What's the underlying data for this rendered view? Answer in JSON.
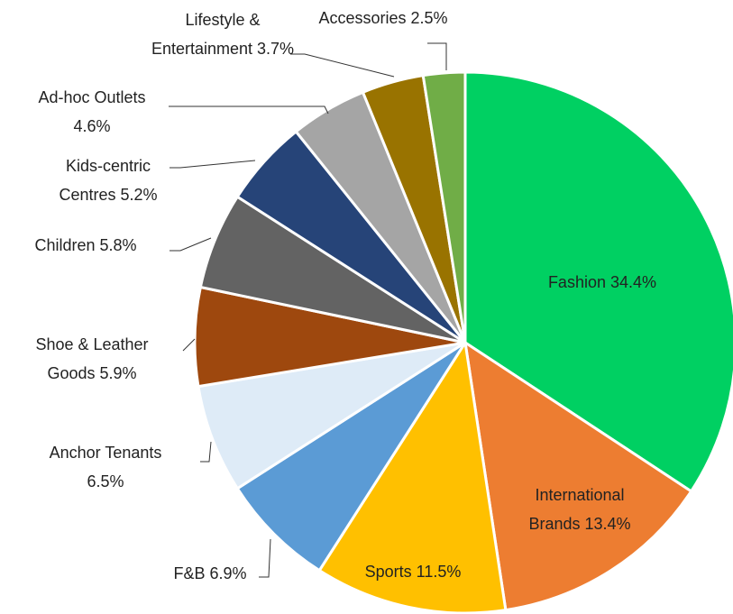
{
  "chart_data": {
    "type": "pie",
    "categories": [
      "Fashion",
      "International Brands",
      "Sports",
      "F&B",
      "Anchor Tenants",
      "Shoe & Leather Goods",
      "Children",
      "Kids-centric Centres",
      "Ad-hoc Outlets",
      "Lifestyle & Entertainment",
      "Accessories"
    ],
    "values": [
      34.4,
      13.4,
      11.5,
      6.9,
      6.5,
      5.9,
      5.8,
      5.2,
      4.6,
      3.7,
      2.5
    ],
    "value_labels": [
      "34.4%",
      "13.4%",
      "11.5%",
      "6.9%",
      "6.5%",
      "5.9%",
      "5.8%",
      "5.2%",
      "4.6%",
      "3.7%",
      "2.5%"
    ],
    "colors": [
      "#00d062",
      "#ed7d31",
      "#ffc000",
      "#5b9bd5",
      "#deebf7",
      "#9e480e",
      "#636363",
      "#264478",
      "#a5a5a5",
      "#997300",
      "#70ad47"
    ]
  }
}
